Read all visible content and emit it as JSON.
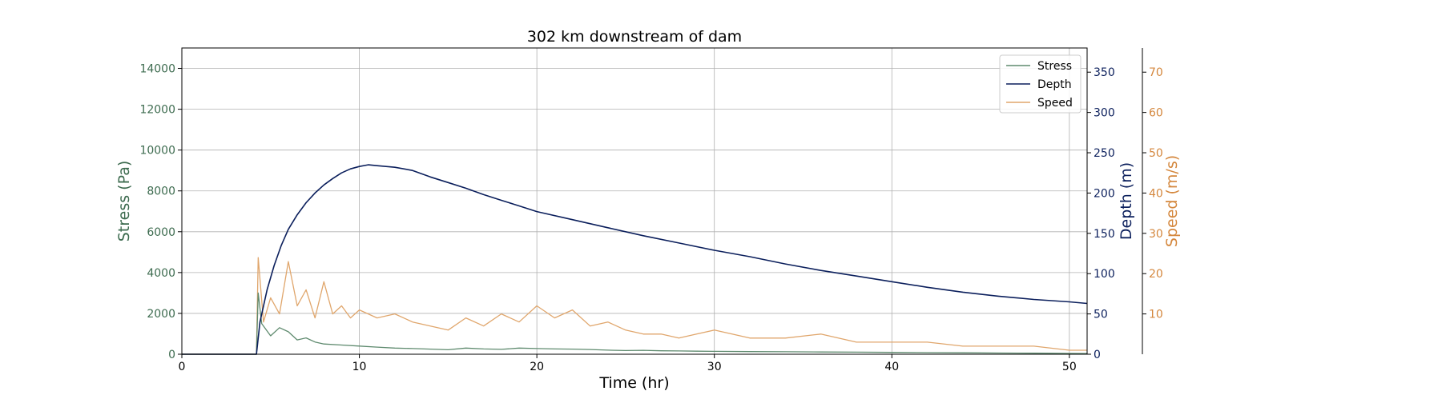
{
  "chart_data": {
    "type": "line",
    "title": "302 km downstream of dam",
    "xlabel": "Time (hr)",
    "xlim": [
      0,
      51
    ],
    "xticks": [
      0,
      10,
      20,
      30,
      40,
      50
    ],
    "grid": true,
    "legend_position": "top-right",
    "axes": {
      "stress": {
        "label": "Stress (Pa)",
        "lim": [
          0,
          15000
        ],
        "ticks": [
          0,
          2000,
          4000,
          6000,
          8000,
          10000,
          12000,
          14000
        ],
        "color": "#3d6b4f",
        "side": "left"
      },
      "depth": {
        "label": "Depth (m)",
        "lim": [
          0,
          380
        ],
        "ticks": [
          0,
          50,
          100,
          150,
          200,
          250,
          300,
          350
        ],
        "color": "#0b1f5c",
        "side": "right"
      },
      "speed": {
        "label": "Speed (m/s)",
        "lim": [
          0,
          76
        ],
        "ticks": [
          10,
          20,
          30,
          40,
          50,
          60,
          70
        ],
        "color": "#d4873d",
        "side": "right-offset"
      }
    },
    "series": [
      {
        "name": "Stress",
        "axis": "stress",
        "color": "#5e8a6e",
        "x": [
          0,
          4.2,
          4.3,
          4.5,
          5,
          5.5,
          6,
          6.5,
          7,
          7.5,
          8,
          9,
          10,
          11,
          12,
          13,
          14,
          15,
          16,
          17,
          18,
          19,
          20,
          21,
          22,
          23,
          24,
          25,
          26,
          27,
          28,
          29,
          30,
          32,
          34,
          36,
          38,
          40,
          42,
          44,
          46,
          48,
          50,
          51
        ],
        "y": [
          0,
          0,
          3000,
          1500,
          900,
          1300,
          1100,
          700,
          800,
          600,
          500,
          450,
          400,
          350,
          300,
          280,
          250,
          220,
          300,
          260,
          240,
          300,
          280,
          260,
          250,
          230,
          200,
          180,
          190,
          170,
          160,
          150,
          140,
          130,
          120,
          110,
          100,
          90,
          80,
          70,
          60,
          50,
          40,
          30
        ]
      },
      {
        "name": "Depth",
        "axis": "depth",
        "color": "#0b1f5c",
        "x": [
          0,
          4.2,
          4.4,
          4.8,
          5.2,
          5.6,
          6,
          6.5,
          7,
          7.5,
          8,
          8.5,
          9,
          9.5,
          10,
          10.5,
          11,
          11.5,
          12,
          13,
          14,
          15,
          16,
          17,
          18,
          19,
          20,
          22,
          24,
          26,
          28,
          30,
          32,
          34,
          36,
          38,
          40,
          42,
          44,
          46,
          48,
          50,
          51
        ],
        "y": [
          0,
          0,
          40,
          80,
          110,
          135,
          155,
          173,
          188,
          200,
          210,
          218,
          225,
          230,
          233,
          235,
          234,
          233,
          232,
          228,
          220,
          213,
          206,
          198,
          191,
          184,
          177,
          167,
          157,
          147,
          138,
          129,
          121,
          112,
          104,
          97,
          90,
          83,
          77,
          72,
          68,
          65,
          63
        ]
      },
      {
        "name": "Speed",
        "axis": "speed",
        "color": "#e0a66c",
        "x": [
          0,
          4.2,
          4.3,
          4.6,
          5,
          5.5,
          6,
          6.5,
          7,
          7.5,
          8,
          8.5,
          9,
          9.5,
          10,
          11,
          12,
          13,
          14,
          15,
          16,
          17,
          18,
          19,
          20,
          21,
          22,
          23,
          24,
          25,
          26,
          27,
          28,
          29,
          30,
          32,
          34,
          36,
          38,
          40,
          42,
          44,
          46,
          48,
          50,
          51
        ],
        "y": [
          0,
          0,
          24,
          8,
          14,
          10,
          23,
          12,
          16,
          9,
          18,
          10,
          12,
          9,
          11,
          9,
          10,
          8,
          7,
          6,
          9,
          7,
          10,
          8,
          12,
          9,
          11,
          7,
          8,
          6,
          5,
          5,
          4,
          5,
          6,
          4,
          4,
          5,
          3,
          3,
          3,
          2,
          2,
          2,
          1,
          1
        ]
      }
    ]
  }
}
